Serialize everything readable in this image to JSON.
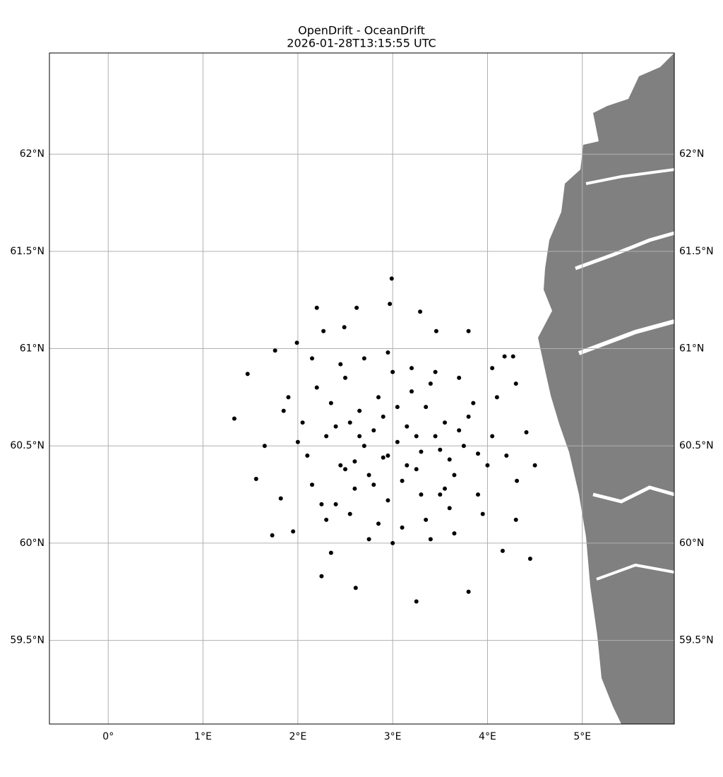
{
  "chart_data": {
    "type": "scatter",
    "title": "OpenDrift - OceanDrift",
    "subtitle": "2026-01-28T13:15:55 UTC",
    "xlim": [
      -0.62,
      5.97
    ],
    "ylim": [
      59.07,
      62.52
    ],
    "xticks": [
      {
        "value": 0,
        "label": "0°"
      },
      {
        "value": 1,
        "label": "1°E"
      },
      {
        "value": 2,
        "label": "2°E"
      },
      {
        "value": 3,
        "label": "3°E"
      },
      {
        "value": 4,
        "label": "4°E"
      },
      {
        "value": 5,
        "label": "5°E"
      }
    ],
    "yticks": [
      {
        "value": 59.5,
        "label": "59.5°N"
      },
      {
        "value": 60,
        "label": "60°N"
      },
      {
        "value": 60.5,
        "label": "60.5°N"
      },
      {
        "value": 61,
        "label": "61°N"
      },
      {
        "value": 61.5,
        "label": "61.5°N"
      },
      {
        "value": 62,
        "label": "62°N"
      }
    ],
    "grid": true,
    "series": [
      {
        "color": "#000000",
        "x": [
          2.99,
          2.2,
          2.97,
          2.62,
          1.33,
          4.45,
          4.5,
          3.25,
          3.8,
          2.61,
          2.25,
          1.76,
          1.99,
          1.47,
          4.18,
          4.27,
          4.41,
          4.16,
          1.73,
          1.56,
          1.82,
          3.29,
          3.46,
          3.8,
          2.49,
          2.27,
          1.95,
          4.3,
          4.31,
          4.3,
          2.1,
          2.3,
          2.45,
          2.55,
          2.7,
          2.8,
          2.9,
          3.05,
          3.15,
          3.3,
          3.45,
          3.6,
          3.75,
          3.9,
          2.15,
          2.35,
          2.6,
          2.85,
          3.1,
          3.35,
          3.55,
          3.8,
          4.0,
          2.05,
          2.4,
          2.65,
          2.95,
          3.2,
          3.5,
          3.7,
          2.2,
          2.5,
          2.75,
          3.0,
          3.25,
          3.4,
          3.65,
          3.85,
          4.05,
          2.3,
          2.55,
          2.85,
          3.1,
          3.35,
          3.6,
          2.45,
          2.7,
          2.95,
          3.2,
          3.45,
          3.7,
          2.0,
          2.25,
          2.6,
          2.9,
          3.15,
          3.5,
          3.9,
          2.4,
          2.8,
          3.05,
          3.3,
          3.55,
          2.65,
          2.95,
          3.25,
          1.9,
          1.65,
          4.1,
          4.2,
          2.75,
          3.0,
          3.4,
          2.35,
          3.65,
          1.85,
          4.05,
          2.15,
          3.95,
          2.5
        ],
        "y": [
          61.36,
          61.21,
          61.23,
          61.21,
          60.64,
          59.92,
          60.4,
          59.7,
          59.75,
          59.77,
          59.83,
          60.99,
          61.03,
          60.87,
          60.96,
          60.96,
          60.57,
          59.96,
          60.04,
          60.33,
          60.23,
          61.19,
          61.09,
          61.09,
          61.11,
          61.09,
          60.06,
          60.12,
          60.32,
          60.82,
          60.45,
          60.55,
          60.4,
          60.62,
          60.5,
          60.58,
          60.44,
          60.52,
          60.6,
          60.47,
          60.55,
          60.43,
          60.5,
          60.46,
          60.3,
          60.72,
          60.28,
          60.75,
          60.32,
          60.7,
          60.28,
          60.65,
          60.4,
          60.62,
          60.2,
          60.68,
          60.22,
          60.78,
          60.25,
          60.58,
          60.8,
          60.85,
          60.35,
          60.88,
          60.38,
          60.82,
          60.35,
          60.72,
          60.55,
          60.12,
          60.15,
          60.1,
          60.08,
          60.12,
          60.18,
          60.92,
          60.95,
          60.98,
          60.9,
          60.88,
          60.85,
          60.52,
          60.2,
          60.42,
          60.65,
          60.4,
          60.48,
          60.25,
          60.6,
          60.3,
          60.7,
          60.25,
          60.62,
          60.55,
          60.45,
          60.55,
          60.75,
          60.5,
          60.75,
          60.45,
          60.02,
          60.0,
          60.02,
          59.95,
          60.05,
          60.68,
          60.9,
          60.95,
          60.15,
          60.38
        ]
      }
    ]
  }
}
